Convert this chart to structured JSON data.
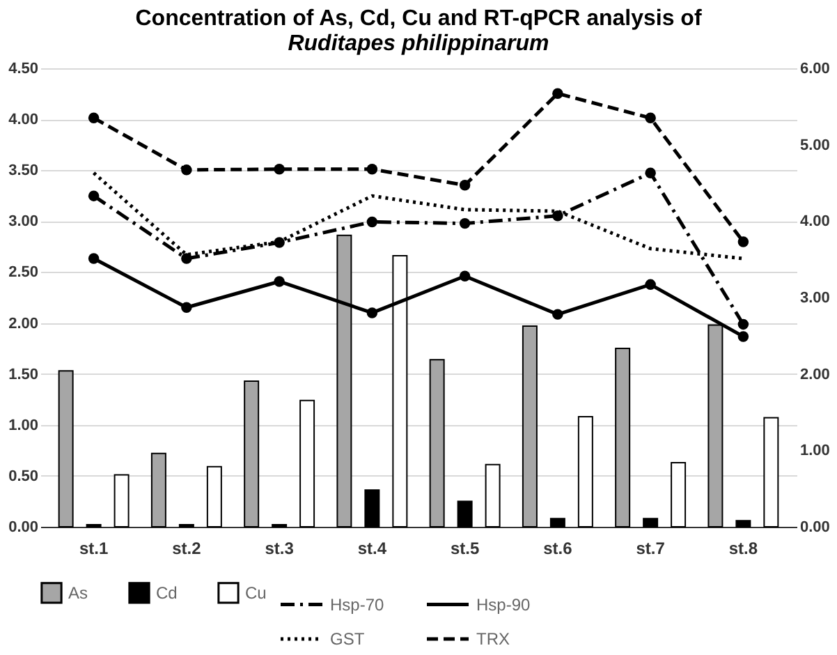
{
  "chart_data": {
    "type": "bar",
    "title": "Concentration of As, Cd, Cu and RT-qPCR analysis of",
    "subtitle": "Ruditapes philippinarum",
    "categories": [
      "st.1",
      "st.2",
      "st.3",
      "st.4",
      "st.5",
      "st.6",
      "st.7",
      "st.8"
    ],
    "series": [
      {
        "name": "As",
        "color": "#a6a6a6",
        "values": [
          1.53,
          0.72,
          1.43,
          2.86,
          1.64,
          1.97,
          1.75,
          1.98
        ]
      },
      {
        "name": "Cd",
        "color": "#000000",
        "values": [
          0.02,
          0.02,
          0.02,
          0.36,
          0.25,
          0.08,
          0.08,
          0.06
        ]
      },
      {
        "name": "Cu",
        "color": "#ffffff",
        "values": [
          0.51,
          0.59,
          1.24,
          2.66,
          0.61,
          1.08,
          0.63,
          1.07
        ]
      },
      {
        "name": "Hsp-70",
        "type": "line",
        "axis": "y2",
        "color": "#000000",
        "line_style": "dashdot",
        "marker": "circle",
        "values": [
          4.33,
          3.51,
          3.72,
          3.99,
          3.97,
          4.07,
          4.63,
          2.65
        ]
      },
      {
        "name": "Hsp-90",
        "type": "line",
        "axis": "y2",
        "color": "#000000",
        "line_style": "solid",
        "marker": "circle",
        "values": [
          3.51,
          2.87,
          3.21,
          2.8,
          3.28,
          2.78,
          3.17,
          2.49
        ]
      },
      {
        "name": "GST",
        "type": "line",
        "axis": "y2",
        "color": "#000000",
        "line_style": "dotted",
        "marker": "none",
        "values": [
          4.63,
          3.56,
          3.73,
          4.33,
          4.15,
          4.13,
          3.64,
          3.51
        ]
      },
      {
        "name": "TRX",
        "type": "line",
        "axis": "y2",
        "color": "#000000",
        "line_style": "dashed",
        "marker": "circle",
        "values": [
          5.35,
          4.67,
          4.68,
          4.68,
          4.47,
          5.67,
          5.35,
          3.73
        ]
      }
    ],
    "ylim": [
      0,
      4.5
    ],
    "yticks": [
      {
        "value": 0,
        "label": "0.00"
      },
      {
        "value": 0.5,
        "label": "0.50"
      },
      {
        "value": 1,
        "label": "1.00"
      },
      {
        "value": 1.5,
        "label": "1.50"
      },
      {
        "value": 2,
        "label": "2.00"
      },
      {
        "value": 2.5,
        "label": "2.50"
      },
      {
        "value": 3,
        "label": "3.00"
      },
      {
        "value": 3.5,
        "label": "3.50"
      },
      {
        "value": 4,
        "label": "4.00"
      },
      {
        "value": 4.5,
        "label": "4.50"
      }
    ],
    "y2lim": [
      0,
      6
    ],
    "y2ticks": [
      {
        "value": 0,
        "label": "0.00"
      },
      {
        "value": 1,
        "label": "1.00"
      },
      {
        "value": 2,
        "label": "2.00"
      },
      {
        "value": 3,
        "label": "3.00"
      },
      {
        "value": 4,
        "label": "4.00"
      },
      {
        "value": 5,
        "label": "5.00"
      },
      {
        "value": 6,
        "label": "6.00"
      }
    ],
    "grid": "y",
    "legend": "bottom"
  }
}
